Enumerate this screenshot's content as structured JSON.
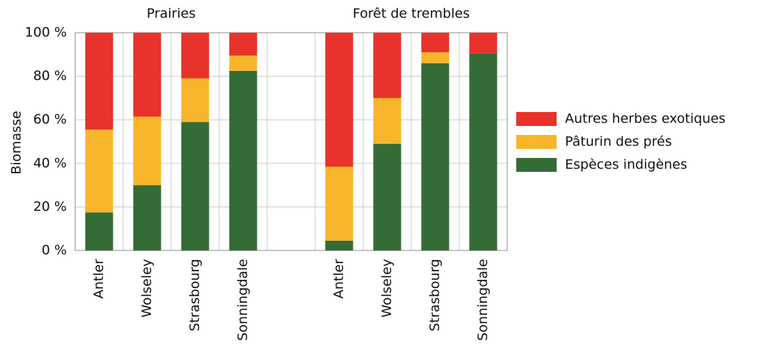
{
  "chart_data": {
    "type": "stacked_bar",
    "groups": [
      "Prairies",
      "Forêt de trembles"
    ],
    "y_label": "Biomasse",
    "categories": [
      "Antler",
      "Wolseley",
      "Strasbourg",
      "Sonningdale",
      null,
      "Antler",
      "Wolseley",
      "Strasbourg",
      "Sonningdale"
    ],
    "series": [
      {
        "name": "Espèces indigènes",
        "color": "#356b35",
        "values": [
          17.5,
          30,
          59,
          82.5,
          null,
          4.5,
          49,
          86,
          90.5
        ]
      },
      {
        "name": "Pâturin des prés",
        "color": "#f9b52a",
        "values": [
          38,
          31.5,
          20,
          7,
          null,
          34,
          21,
          5,
          0
        ]
      },
      {
        "name": "Autres herbes exotiques",
        "color": "#e8322a",
        "values": [
          44.5,
          38.5,
          21,
          10.5,
          null,
          61.5,
          30,
          9,
          9.5
        ]
      }
    ],
    "ylim": [
      0,
      100
    ],
    "yticks": [
      {
        "value": 0,
        "label": "0 %"
      },
      {
        "value": 20,
        "label": "20 %"
      },
      {
        "value": 40,
        "label": "40 %"
      },
      {
        "value": 60,
        "label": "60 %"
      },
      {
        "value": 80,
        "label": "80 %"
      },
      {
        "value": 100,
        "label": "100 %"
      }
    ],
    "grid": true
  }
}
